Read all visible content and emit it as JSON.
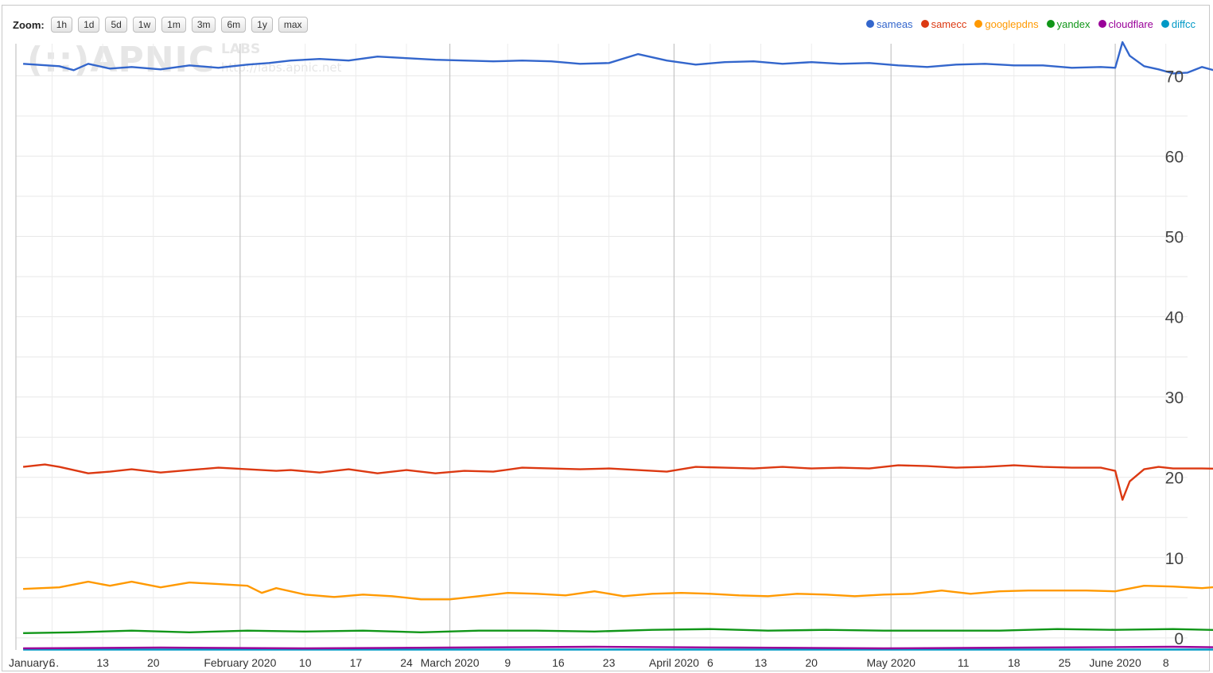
{
  "toolbar": {
    "zoom_label": "Zoom:",
    "zoom_buttons": [
      "1h",
      "1d",
      "5d",
      "1w",
      "1m",
      "3m",
      "6m",
      "1y",
      "max"
    ]
  },
  "watermark": {
    "main": "(::)APNIC",
    "labs": "LABS",
    "url": "http://labs.apnic.net"
  },
  "legend": [
    {
      "name": "sameas",
      "color": "#3366cc"
    },
    {
      "name": "samecc",
      "color": "#dc3912"
    },
    {
      "name": "googlepdns",
      "color": "#ff9900"
    },
    {
      "name": "yandex",
      "color": "#109618"
    },
    {
      "name": "cloudflare",
      "color": "#990099"
    },
    {
      "name": "diffcc",
      "color": "#0099c6"
    }
  ],
  "chart_data": {
    "type": "line",
    "x_start": "2020-01-01",
    "x_end": "2020-06-11",
    "x_major_ticks": [
      {
        "date": "2020-01-01",
        "label": "January…"
      },
      {
        "date": "2020-02-01",
        "label": "February 2020"
      },
      {
        "date": "2020-03-01",
        "label": "March 2020"
      },
      {
        "date": "2020-04-01",
        "label": "April 2020"
      },
      {
        "date": "2020-05-01",
        "label": "May 2020"
      },
      {
        "date": "2020-06-01",
        "label": "June 2020"
      }
    ],
    "x_minor_ticks": [
      {
        "date": "2020-01-06",
        "label": "6"
      },
      {
        "date": "2020-01-13",
        "label": "13"
      },
      {
        "date": "2020-01-20",
        "label": "20"
      },
      {
        "date": "2020-02-10",
        "label": "10"
      },
      {
        "date": "2020-02-17",
        "label": "17"
      },
      {
        "date": "2020-02-24",
        "label": "24"
      },
      {
        "date": "2020-03-09",
        "label": "9"
      },
      {
        "date": "2020-03-16",
        "label": "16"
      },
      {
        "date": "2020-03-23",
        "label": "23"
      },
      {
        "date": "2020-04-06",
        "label": "6"
      },
      {
        "date": "2020-04-13",
        "label": "13"
      },
      {
        "date": "2020-04-20",
        "label": "20"
      },
      {
        "date": "2020-05-11",
        "label": "11"
      },
      {
        "date": "2020-05-18",
        "label": "18"
      },
      {
        "date": "2020-05-25",
        "label": "25"
      },
      {
        "date": "2020-06-08",
        "label": "8"
      }
    ],
    "y_ticks": [
      0,
      10,
      20,
      30,
      40,
      50,
      60,
      70
    ],
    "ylim": [
      -1.5,
      74
    ],
    "grid": true,
    "legend_position": "top-right",
    "series": [
      {
        "name": "sameas",
        "color": "#3366cc",
        "values": [
          [
            1,
            71.5
          ],
          [
            6,
            71.2
          ],
          [
            8,
            70.7
          ],
          [
            10,
            71.5
          ],
          [
            13,
            70.9
          ],
          [
            16,
            71.1
          ],
          [
            20,
            70.8
          ],
          [
            24,
            71.3
          ],
          [
            28,
            71.0
          ],
          [
            32,
            71.4
          ],
          [
            35,
            71.6
          ],
          [
            38,
            71.9
          ],
          [
            42,
            72.1
          ],
          [
            46,
            71.9
          ],
          [
            50,
            72.4
          ],
          [
            54,
            72.2
          ],
          [
            58,
            72.0
          ],
          [
            62,
            71.9
          ],
          [
            66,
            71.8
          ],
          [
            70,
            71.9
          ],
          [
            74,
            71.8
          ],
          [
            78,
            71.5
          ],
          [
            82,
            71.6
          ],
          [
            86,
            72.7
          ],
          [
            90,
            71.9
          ],
          [
            94,
            71.4
          ],
          [
            98,
            71.7
          ],
          [
            102,
            71.8
          ],
          [
            106,
            71.5
          ],
          [
            110,
            71.7
          ],
          [
            114,
            71.5
          ],
          [
            118,
            71.6
          ],
          [
            122,
            71.3
          ],
          [
            126,
            71.1
          ],
          [
            130,
            71.4
          ],
          [
            134,
            71.5
          ],
          [
            138,
            71.3
          ],
          [
            142,
            71.3
          ],
          [
            146,
            71.0
          ],
          [
            150,
            71.1
          ],
          [
            152,
            71.0
          ],
          [
            153,
            74.2
          ],
          [
            154,
            72.5
          ],
          [
            156,
            71.2
          ],
          [
            158,
            70.8
          ],
          [
            160,
            70.3
          ],
          [
            162,
            70.4
          ],
          [
            164,
            71.1
          ],
          [
            166,
            70.6
          ],
          [
            168,
            70.9
          ],
          [
            170,
            70.6
          ]
        ]
      },
      {
        "name": "samecc",
        "color": "#dc3912",
        "values": [
          [
            1,
            21.3
          ],
          [
            4,
            21.6
          ],
          [
            6,
            21.3
          ],
          [
            10,
            20.5
          ],
          [
            13,
            20.7
          ],
          [
            16,
            21.0
          ],
          [
            20,
            20.6
          ],
          [
            24,
            20.9
          ],
          [
            28,
            21.2
          ],
          [
            32,
            21.0
          ],
          [
            36,
            20.8
          ],
          [
            38,
            20.9
          ],
          [
            42,
            20.6
          ],
          [
            46,
            21.0
          ],
          [
            50,
            20.5
          ],
          [
            54,
            20.9
          ],
          [
            58,
            20.5
          ],
          [
            62,
            20.8
          ],
          [
            66,
            20.7
          ],
          [
            70,
            21.2
          ],
          [
            74,
            21.1
          ],
          [
            78,
            21.0
          ],
          [
            82,
            21.1
          ],
          [
            86,
            20.9
          ],
          [
            90,
            20.7
          ],
          [
            94,
            21.3
          ],
          [
            98,
            21.2
          ],
          [
            102,
            21.1
          ],
          [
            106,
            21.3
          ],
          [
            110,
            21.1
          ],
          [
            114,
            21.2
          ],
          [
            118,
            21.1
          ],
          [
            122,
            21.5
          ],
          [
            126,
            21.4
          ],
          [
            130,
            21.2
          ],
          [
            134,
            21.3
          ],
          [
            138,
            21.5
          ],
          [
            142,
            21.3
          ],
          [
            146,
            21.2
          ],
          [
            150,
            21.2
          ],
          [
            152,
            20.8
          ],
          [
            153,
            17.2
          ],
          [
            154,
            19.5
          ],
          [
            156,
            21.0
          ],
          [
            158,
            21.3
          ],
          [
            160,
            21.1
          ],
          [
            164,
            21.1
          ],
          [
            170,
            21.0
          ]
        ]
      },
      {
        "name": "googlepdns",
        "color": "#ff9900",
        "values": [
          [
            1,
            6.1
          ],
          [
            6,
            6.3
          ],
          [
            10,
            7.0
          ],
          [
            13,
            6.5
          ],
          [
            16,
            7.0
          ],
          [
            20,
            6.3
          ],
          [
            24,
            6.9
          ],
          [
            28,
            6.7
          ],
          [
            32,
            6.5
          ],
          [
            34,
            5.6
          ],
          [
            36,
            6.2
          ],
          [
            40,
            5.4
          ],
          [
            44,
            5.1
          ],
          [
            48,
            5.4
          ],
          [
            52,
            5.2
          ],
          [
            56,
            4.8
          ],
          [
            60,
            4.8
          ],
          [
            64,
            5.2
          ],
          [
            68,
            5.6
          ],
          [
            72,
            5.5
          ],
          [
            76,
            5.3
          ],
          [
            80,
            5.8
          ],
          [
            84,
            5.2
          ],
          [
            88,
            5.5
          ],
          [
            92,
            5.6
          ],
          [
            96,
            5.5
          ],
          [
            100,
            5.3
          ],
          [
            104,
            5.2
          ],
          [
            108,
            5.5
          ],
          [
            112,
            5.4
          ],
          [
            116,
            5.2
          ],
          [
            120,
            5.4
          ],
          [
            124,
            5.5
          ],
          [
            128,
            5.9
          ],
          [
            132,
            5.5
          ],
          [
            136,
            5.8
          ],
          [
            140,
            5.9
          ],
          [
            144,
            5.9
          ],
          [
            148,
            5.9
          ],
          [
            152,
            5.8
          ],
          [
            156,
            6.5
          ],
          [
            160,
            6.4
          ],
          [
            164,
            6.2
          ],
          [
            168,
            6.5
          ],
          [
            170,
            6.4
          ]
        ]
      },
      {
        "name": "yandex",
        "color": "#109618",
        "values": [
          [
            1,
            0.6
          ],
          [
            8,
            0.7
          ],
          [
            16,
            0.9
          ],
          [
            24,
            0.7
          ],
          [
            32,
            0.9
          ],
          [
            40,
            0.8
          ],
          [
            48,
            0.9
          ],
          [
            56,
            0.7
          ],
          [
            64,
            0.9
          ],
          [
            72,
            0.9
          ],
          [
            80,
            0.8
          ],
          [
            88,
            1.0
          ],
          [
            96,
            1.1
          ],
          [
            104,
            0.9
          ],
          [
            112,
            1.0
          ],
          [
            120,
            0.9
          ],
          [
            128,
            0.9
          ],
          [
            136,
            0.9
          ],
          [
            144,
            1.1
          ],
          [
            152,
            1.0
          ],
          [
            160,
            1.1
          ],
          [
            170,
            0.9
          ]
        ]
      },
      {
        "name": "cloudflare",
        "color": "#990099",
        "values": [
          [
            1,
            -1.3
          ],
          [
            20,
            -1.2
          ],
          [
            40,
            -1.3
          ],
          [
            60,
            -1.2
          ],
          [
            80,
            -1.1
          ],
          [
            100,
            -1.2
          ],
          [
            120,
            -1.3
          ],
          [
            140,
            -1.2
          ],
          [
            160,
            -1.1
          ],
          [
            170,
            -1.2
          ]
        ]
      },
      {
        "name": "diffcc",
        "color": "#0099c6",
        "values": [
          [
            1,
            -1.45
          ],
          [
            40,
            -1.45
          ],
          [
            80,
            -1.45
          ],
          [
            120,
            -1.45
          ],
          [
            170,
            -1.45
          ]
        ]
      }
    ]
  }
}
